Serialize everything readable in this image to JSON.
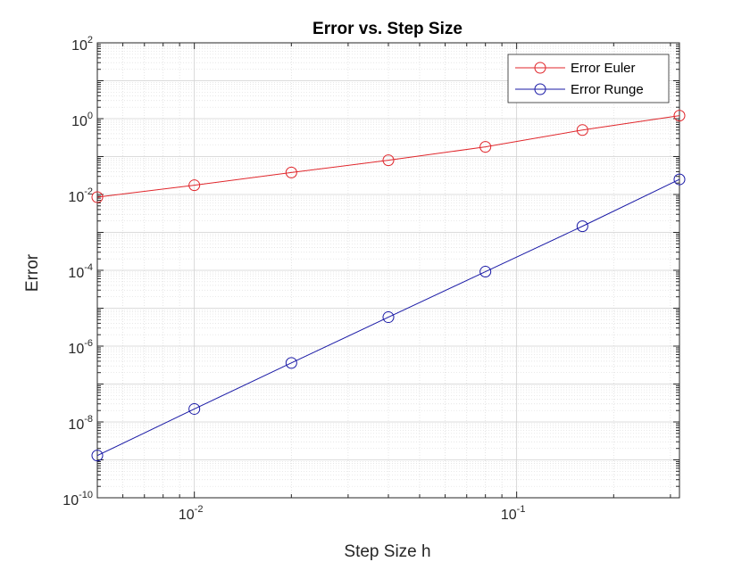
{
  "chart_data": {
    "type": "line",
    "title": "Error vs. Step Size",
    "xlabel": "Step Size h",
    "ylabel": "Error",
    "xscale": "log",
    "yscale": "log",
    "xlim": [
      0.005,
      0.32
    ],
    "ylim": [
      1e-10,
      100
    ],
    "grid": true,
    "minor_grid": true,
    "legend_position": "top-right",
    "x_ticks": [
      {
        "base": "10",
        "exp": "-2",
        "value": 0.01
      },
      {
        "base": "10",
        "exp": "-1",
        "value": 0.1
      }
    ],
    "y_ticks": [
      {
        "base": "10",
        "exp": "2",
        "value": 100
      },
      {
        "base": "10",
        "exp": "0",
        "value": 1
      },
      {
        "base": "10",
        "exp": "-2",
        "value": 0.01
      },
      {
        "base": "10",
        "exp": "-4",
        "value": 0.0001
      },
      {
        "base": "10",
        "exp": "-6",
        "value": 1e-06
      },
      {
        "base": "10",
        "exp": "-8",
        "value": 1e-08
      },
      {
        "base": "10",
        "exp": "-10",
        "value": 1e-10
      }
    ],
    "x": [
      0.005,
      0.01,
      0.02,
      0.04,
      0.08,
      0.16,
      0.32
    ],
    "series": [
      {
        "name": "Error Euler",
        "color": "#e0262b",
        "marker": "circle",
        "values": [
          0.0085,
          0.0175,
          0.038,
          0.08,
          0.18,
          0.5,
          1.2
        ]
      },
      {
        "name": "Error Runge",
        "color": "#1a1aa6",
        "marker": "circle",
        "values": [
          1.3e-09,
          2.2e-08,
          3.6e-07,
          5.8e-06,
          9.2e-05,
          0.00145,
          0.025
        ]
      }
    ]
  }
}
